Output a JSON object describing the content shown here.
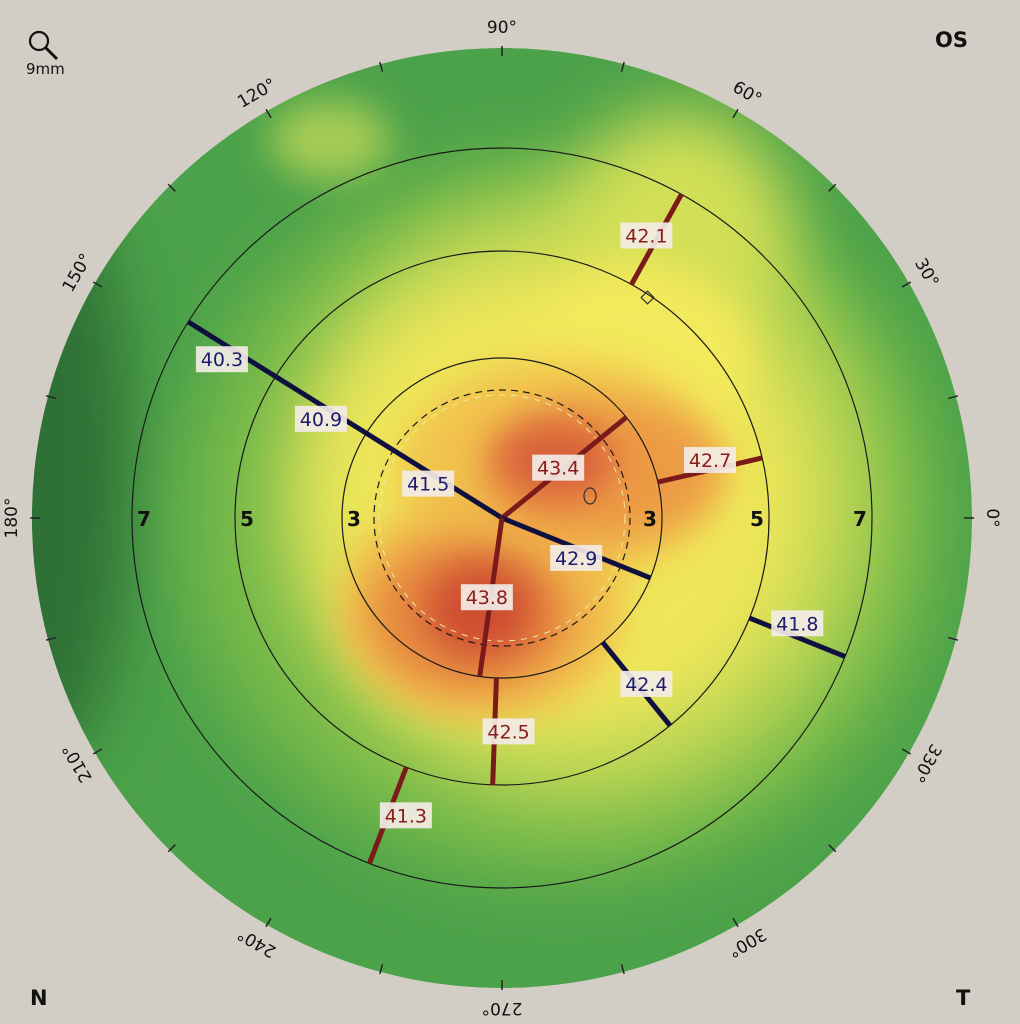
{
  "header": {
    "eye": "OS",
    "zoom_icon": "magnifier-icon",
    "zoom_label": "9mm"
  },
  "footer": {
    "left_label": "N",
    "right_label": "T"
  },
  "axis_labels": [
    "0°",
    "30°",
    "60°",
    "90°",
    "120°",
    "150°",
    "180°",
    "210°",
    "240°",
    "270°",
    "300°",
    "330°"
  ],
  "ring_labels": [
    "3",
    "5",
    "7"
  ],
  "meridians": [
    {
      "angle": 61,
      "inner": 5,
      "outer": 7,
      "value": "42.1",
      "color": "#7a1a1a",
      "text_color": "#8a1b1b"
    },
    {
      "angle": 148,
      "inner": 5,
      "outer": 7,
      "value": "40.3",
      "color": "#101040",
      "text_color": "#1b1b6e"
    },
    {
      "angle": 148,
      "inner": 3,
      "outer": 5,
      "value": "40.9",
      "color": "#101040",
      "text_color": "#1b1b6e"
    },
    {
      "angle": 148,
      "inner": 0,
      "outer": 3,
      "value": "41.5",
      "color": "#101040",
      "text_color": "#1b1b6e"
    },
    {
      "angle": 39,
      "inner": 0,
      "outer": 3,
      "value": "43.4",
      "color": "#7a1a1a",
      "text_color": "#8a1b1b"
    },
    {
      "angle": 13,
      "inner": 3,
      "outer": 5,
      "value": "42.7",
      "color": "#7a1a1a",
      "text_color": "#8a1b1b"
    },
    {
      "angle": 338,
      "inner": 0,
      "outer": 3,
      "value": "42.9",
      "color": "#101040",
      "text_color": "#1b1b6e"
    },
    {
      "angle": 338,
      "inner": 5,
      "outer": 7,
      "value": "41.8",
      "color": "#101040",
      "text_color": "#1b1b6e"
    },
    {
      "angle": 309,
      "inner": 3,
      "outer": 5,
      "value": "42.4",
      "color": "#101040",
      "text_color": "#1b1b6e"
    },
    {
      "angle": 262,
      "inner": 0,
      "outer": 3,
      "value": "43.8",
      "color": "#7a1a1a",
      "text_color": "#8a1b1b"
    },
    {
      "angle": 268,
      "inner": 3,
      "outer": 5,
      "value": "42.5",
      "color": "#7a1a1a",
      "text_color": "#8a1b1b"
    },
    {
      "angle": 249,
      "inner": 5,
      "outer": 7,
      "value": "41.3",
      "color": "#7a1a1a",
      "text_color": "#8a1b1b"
    }
  ],
  "colors": {
    "background": "#d3cec5",
    "steep": "#c8412a",
    "mid": "#f5e75a",
    "flat": "#3f9a45"
  }
}
